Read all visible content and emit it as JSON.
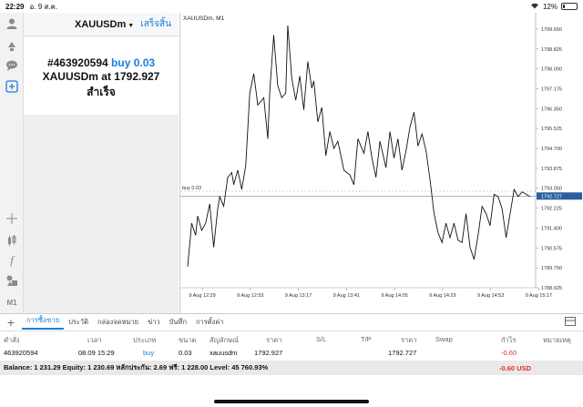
{
  "status": {
    "time": "22:29",
    "date": "อ. 9 ส.ค.",
    "battery": "12%",
    "battery_level": 0.12
  },
  "left_toolbar": {
    "icons": [
      "crosshair-icon",
      "indicators-icon",
      "text-icon",
      "objects-icon",
      "timeframe-label"
    ],
    "timeframe": "M1"
  },
  "header": {
    "symbol": "XAUUSDm",
    "done": "เสร็จสิ้น"
  },
  "confirm": {
    "ticket": "#463920594",
    "action": "buy 0.03",
    "line2": "XAUUSDm at 1792.927",
    "line3": "สำเร็จ"
  },
  "chart_data": {
    "type": "line",
    "title": "XAUUSDm, M1",
    "y_ticks": [
      "1799.650",
      "1798.825",
      "1798.000",
      "1797.175",
      "1796.350",
      "1795.525",
      "1794.700",
      "1793.875",
      "1793.050",
      "1792.225",
      "1791.400",
      "1790.575",
      "1789.750",
      "1788.925"
    ],
    "x_ticks": [
      "9 Aug 12:29",
      "9 Aug 12:53",
      "9 Aug 13:17",
      "9 Aug 13:41",
      "9 Aug 14:05",
      "9 Aug 14:29",
      "9 Aug 14:53",
      "9 Aug 15:17"
    ],
    "ylim": [
      1788.925,
      1800.1
    ],
    "current_price": "1792.727",
    "current_price_value": 1792.727,
    "buy_line_label": "buy 0.03",
    "buy_line_value": 1792.927,
    "x_minutes": [
      0,
      2,
      4,
      5,
      7,
      9,
      11,
      13,
      15,
      16,
      18,
      20,
      22,
      23,
      25,
      27,
      29,
      31,
      33,
      35,
      38,
      40,
      41,
      43,
      45,
      47,
      49,
      50,
      52,
      54,
      56,
      58,
      60,
      62,
      63,
      65,
      67,
      69,
      71,
      73,
      75,
      78,
      81,
      83,
      85,
      88,
      90,
      92,
      94,
      96,
      99,
      101,
      103,
      105,
      107,
      109,
      111,
      113,
      115,
      117,
      119,
      121,
      123,
      125,
      127,
      129,
      131,
      133,
      135,
      137,
      139,
      141,
      143,
      145,
      147,
      149,
      151,
      153,
      155,
      157,
      159,
      161,
      163,
      165,
      167,
      169,
      171
    ],
    "y": [
      1789.8,
      1791.6,
      1791.1,
      1791.9,
      1791.3,
      1791.6,
      1792.4,
      1790.6,
      1792.2,
      1792.7,
      1792.3,
      1793.5,
      1793.7,
      1793.2,
      1793.8,
      1793.0,
      1794.0,
      1797.0,
      1797.8,
      1796.5,
      1796.8,
      1795.1,
      1797.1,
      1799.4,
      1797.3,
      1796.8,
      1797.0,
      1799.8,
      1797.6,
      1796.7,
      1797.7,
      1796.3,
      1798.3,
      1797.2,
      1797.5,
      1795.8,
      1796.4,
      1794.4,
      1795.4,
      1794.7,
      1795.0,
      1793.8,
      1793.6,
      1793.2,
      1795.1,
      1794.5,
      1795.4,
      1794.3,
      1793.5,
      1795.0,
      1793.9,
      1795.4,
      1794.3,
      1795.1,
      1793.8,
      1794.6,
      1795.6,
      1796.2,
      1794.8,
      1795.3,
      1794.6,
      1793.4,
      1792.0,
      1791.2,
      1790.8,
      1791.6,
      1791.0,
      1791.6,
      1790.9,
      1790.8,
      1792.0,
      1790.6,
      1790.1,
      1791.1,
      1792.3,
      1792.0,
      1791.5,
      1792.8,
      1792.7,
      1792.2,
      1791.0,
      1792.0,
      1793.0,
      1792.7,
      1792.9,
      1792.8,
      1792.7
    ]
  },
  "tabs": {
    "items": [
      "การซื้อขาย",
      "ประวัติ",
      "กล่องจดหมาย",
      "ข่าว",
      "บันทึก",
      "การตั้งค่า"
    ],
    "active": 0
  },
  "table": {
    "headers": [
      "คำสั่ง",
      "เวลา",
      "ประเภท",
      "ขนาด",
      "สัญลักษณ์",
      "ราคา",
      "S/L",
      "T/P",
      "ราคา",
      "Swap",
      "กำไร",
      "หมายเหตุ"
    ],
    "row": {
      "order": "463920594",
      "time": "08.09 15:29",
      "type": "buy",
      "volume": "0.03",
      "symbol": "xauusdm",
      "price": "1792.927",
      "sl": "",
      "tp": "",
      "cur_price": "1792.727",
      "swap": "",
      "profit": "-0.60",
      "comment": ""
    }
  },
  "balance": {
    "text": "Balance: 1 231.29 Equity: 1 230.69 หลักประกัน: 2.69 ฟรี: 1 228.00 Level: 45 760.93%",
    "pl": "-0.60  USD"
  }
}
